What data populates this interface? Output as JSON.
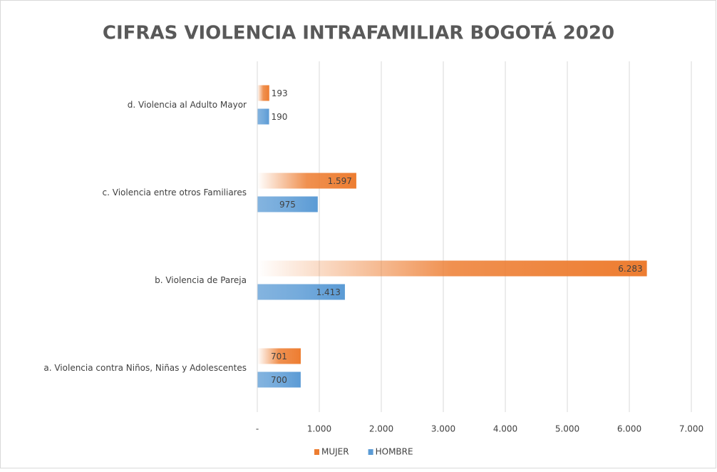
{
  "chart_data": {
    "type": "bar",
    "orientation": "horizontal",
    "title": "CIFRAS VIOLENCIA INTRAFAMILIAR BOGOTÁ 2020",
    "categories": [
      "a. Violencia contra Niños, Niñas y Adolescentes",
      "b. Violencia de Pareja",
      "c. Violencia entre otros Familiares",
      "d. Violencia al Adulto Mayor"
    ],
    "series": [
      {
        "name": "MUJER",
        "color": "#ed7d31",
        "values": [
          701,
          6283,
          1597,
          193
        ],
        "value_labels": [
          "701",
          "6.283",
          "1.597",
          "193"
        ]
      },
      {
        "name": "HOMBRE",
        "color": "#5b9bd5",
        "values": [
          700,
          1413,
          975,
          190
        ],
        "value_labels": [
          "700",
          "1.413",
          "975",
          "190"
        ]
      }
    ],
    "xlim": [
      0,
      7000
    ],
    "xticks": [
      {
        "value": 0,
        "label": "-"
      },
      {
        "value": 1000,
        "label": "1.000"
      },
      {
        "value": 2000,
        "label": "2.000"
      },
      {
        "value": 3000,
        "label": "3.000"
      },
      {
        "value": 4000,
        "label": "4.000"
      },
      {
        "value": 5000,
        "label": "5.000"
      },
      {
        "value": 6000,
        "label": "6.000"
      },
      {
        "value": 7000,
        "label": "7.000"
      }
    ],
    "grid": true,
    "legend": "bottom"
  }
}
